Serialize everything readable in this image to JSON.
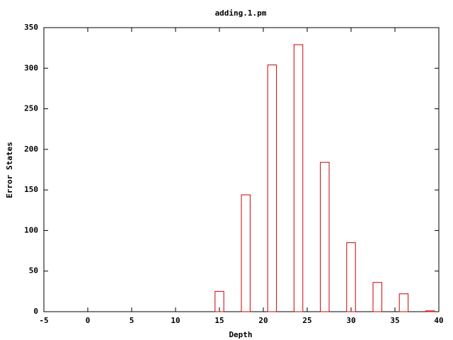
{
  "chart_data": {
    "type": "bar",
    "title": "adding.1.pm",
    "xlabel": "Depth",
    "ylabel": "Error States",
    "x": [
      15,
      18,
      21,
      24,
      27,
      30,
      33,
      36,
      39
    ],
    "values": [
      25,
      144,
      304,
      329,
      184,
      85,
      36,
      22,
      1
    ],
    "color": "#cc0000",
    "xlim": [
      -5,
      40
    ],
    "xticks": [
      -5,
      0,
      5,
      10,
      15,
      20,
      25,
      30,
      35,
      40
    ],
    "ylim": [
      0,
      350
    ],
    "yticks": [
      0,
      50,
      100,
      150,
      200,
      250,
      300,
      350
    ]
  }
}
